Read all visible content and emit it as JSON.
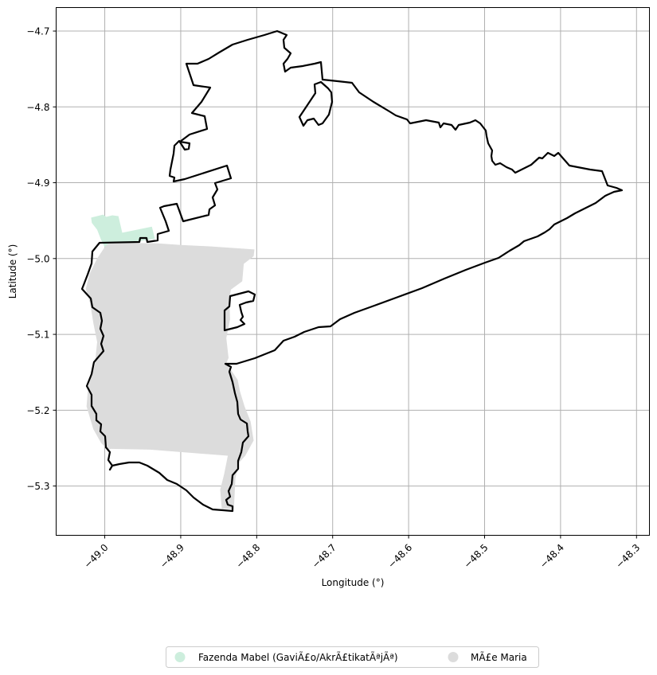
{
  "chart_data": {
    "type": "map",
    "xlabel": "Longitude (°)",
    "ylabel": "Latitude (°)",
    "x_ticks": [
      "−49.0",
      "−48.9",
      "−48.8",
      "−48.7",
      "−48.6",
      "−48.5",
      "−48.4",
      "−48.3"
    ],
    "x_tick_values": [
      -49.0,
      -48.9,
      -48.8,
      -48.7,
      -48.6,
      -48.5,
      -48.4,
      -48.3
    ],
    "y_ticks": [
      "−4.7",
      "−4.8",
      "−4.9",
      "−5.0",
      "−5.1",
      "−5.2",
      "−5.3"
    ],
    "y_tick_values": [
      -4.7,
      -4.8,
      -4.9,
      -5.0,
      -5.1,
      -5.2,
      -5.3
    ],
    "xlim": [
      -49.064,
      -48.283
    ],
    "ylim": [
      -5.365,
      -4.669
    ],
    "grid": true,
    "legend_placement": "bottom-center",
    "legend": [
      {
        "label": "Fazenda Mabel (GaviÃ£o/AkrÃ£tikatÃªjÃª)",
        "color": "#cdeedd"
      },
      {
        "label": "MÃ£e Maria",
        "color": "#dcdcdc"
      }
    ],
    "boundary_color": "#000000",
    "areas": [
      {
        "name": "Fazenda Mabel (GaviÃ£o/AkrÃ£tikatÃªjÃª)",
        "color": "#cdeedd",
        "polygon": [
          [
            -49.018,
            -4.946
          ],
          [
            -49.002,
            -4.942
          ],
          [
            -48.998,
            -4.945
          ],
          [
            -48.99,
            -4.943
          ],
          [
            -48.982,
            -4.944
          ],
          [
            -48.977,
            -4.966
          ],
          [
            -48.938,
            -4.958
          ],
          [
            -48.934,
            -4.974
          ],
          [
            -48.96,
            -4.978
          ],
          [
            -48.99,
            -4.979
          ],
          [
            -49.0,
            -4.985
          ],
          [
            -49.005,
            -4.975
          ],
          [
            -49.01,
            -4.962
          ],
          [
            -49.017,
            -4.953
          ]
        ]
      },
      {
        "name": "MÃ£e Maria",
        "color": "#dcdcdc",
        "polygon": [
          [
            -48.994,
            -4.979
          ],
          [
            -48.93,
            -4.98
          ],
          [
            -48.9,
            -4.982
          ],
          [
            -48.86,
            -4.984
          ],
          [
            -48.803,
            -4.988
          ],
          [
            -48.804,
            -4.997
          ],
          [
            -48.817,
            -5.007
          ],
          [
            -48.819,
            -5.03
          ],
          [
            -48.834,
            -5.041
          ],
          [
            -48.836,
            -5.055
          ],
          [
            -48.835,
            -5.08
          ],
          [
            -48.84,
            -5.105
          ],
          [
            -48.837,
            -5.131
          ],
          [
            -48.84,
            -5.138
          ],
          [
            -48.825,
            -5.16
          ],
          [
            -48.822,
            -5.175
          ],
          [
            -48.816,
            -5.195
          ],
          [
            -48.808,
            -5.215
          ],
          [
            -48.804,
            -5.24
          ],
          [
            -48.815,
            -5.26
          ],
          [
            -48.824,
            -5.27
          ],
          [
            -48.828,
            -5.29
          ],
          [
            -48.83,
            -5.33
          ],
          [
            -48.846,
            -5.33
          ],
          [
            -48.848,
            -5.305
          ],
          [
            -48.843,
            -5.285
          ],
          [
            -48.838,
            -5.26
          ],
          [
            -48.94,
            -5.252
          ],
          [
            -48.992,
            -5.251
          ],
          [
            -48.996,
            -5.252
          ],
          [
            -49.005,
            -5.243
          ],
          [
            -49.015,
            -5.225
          ],
          [
            -49.024,
            -5.195
          ],
          [
            -49.022,
            -5.17
          ],
          [
            -49.013,
            -5.14
          ],
          [
            -49.01,
            -5.11
          ],
          [
            -49.015,
            -5.085
          ],
          [
            -49.019,
            -5.06
          ],
          [
            -49.025,
            -5.04
          ],
          [
            -49.02,
            -5.02
          ],
          [
            -49.01,
            -5.0
          ],
          [
            -49.0,
            -4.985
          ]
        ]
      }
    ]
  },
  "legend_label_fazenda": "Fazenda Mabel (GaviÃ£o/AkrÃ£tikatÃªjÃª)",
  "legend_label_maria": "MÃ£e Maria"
}
